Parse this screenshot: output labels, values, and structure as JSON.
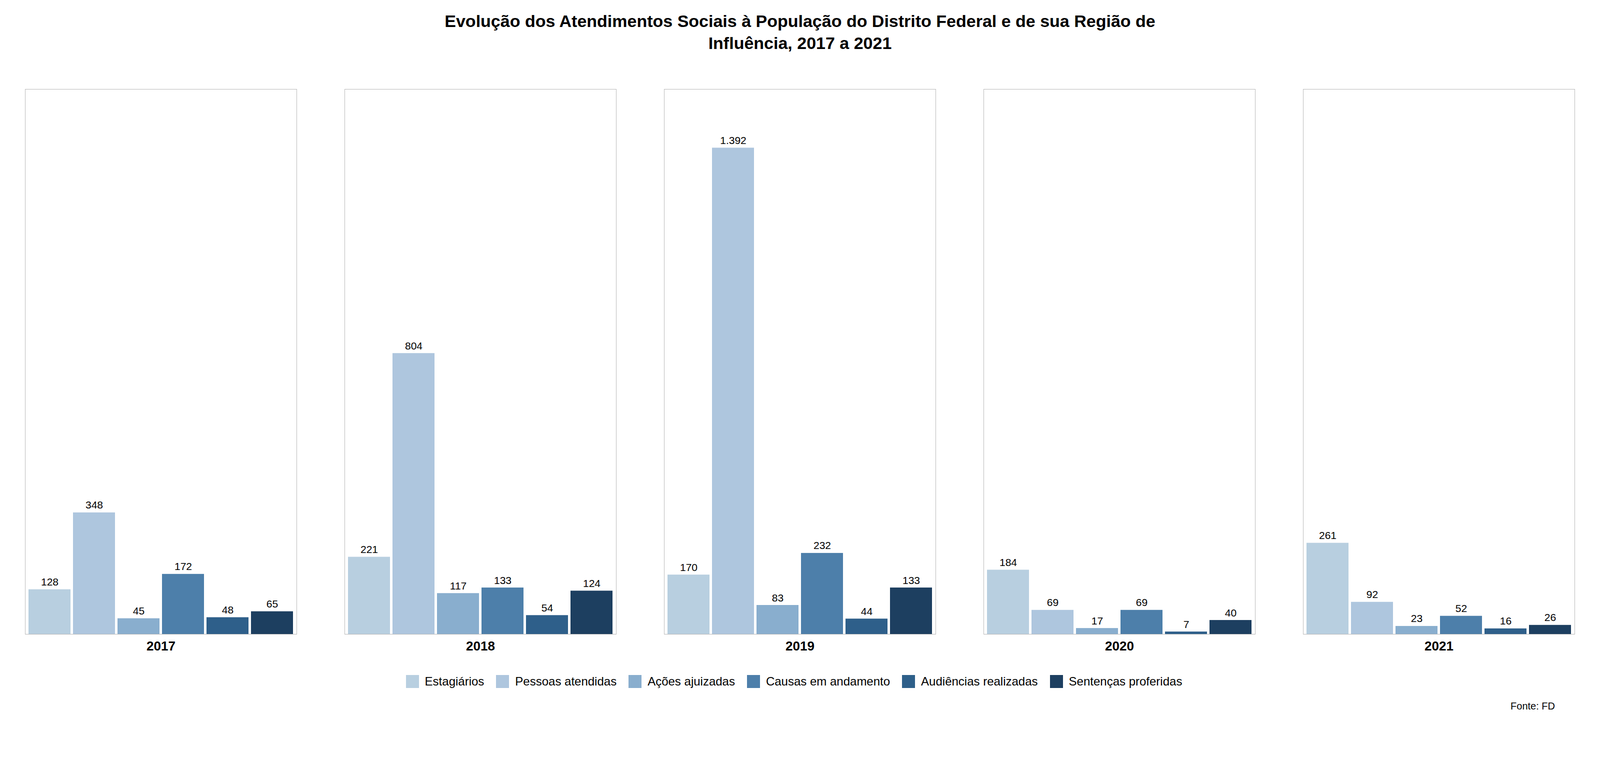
{
  "chart_data": {
    "type": "bar",
    "title": "Evolução dos Atendimentos Sociais à População do Distrito Federal e de sua Região de\nInfluência, 2017 a 2021",
    "categories": [
      "2017",
      "2018",
      "2019",
      "2020",
      "2021"
    ],
    "series": [
      {
        "name": "Estagiários",
        "color": "#b8cfe0",
        "values": [
          128,
          221,
          170,
          184,
          261
        ],
        "value_labels": [
          "128",
          "221",
          "170",
          "184",
          "261"
        ]
      },
      {
        "name": "Pessoas atendidas",
        "color": "#aec6de",
        "values": [
          348,
          804,
          1392,
          69,
          92
        ],
        "value_labels": [
          "348",
          "804",
          "1.392",
          "69",
          "92"
        ]
      },
      {
        "name": "Ações ajuizadas",
        "color": "#89aece",
        "values": [
          45,
          117,
          83,
          17,
          23
        ],
        "value_labels": [
          "45",
          "117",
          "83",
          "17",
          "23"
        ]
      },
      {
        "name": "Causas em andamento",
        "color": "#4d7faa",
        "values": [
          172,
          133,
          232,
          69,
          52
        ],
        "value_labels": [
          "172",
          "133",
          "232",
          "69",
          "52"
        ]
      },
      {
        "name": "Audiências realizadas",
        "color": "#2e5f8a",
        "values": [
          48,
          54,
          44,
          7,
          16
        ],
        "value_labels": [
          "48",
          "54",
          "44",
          "7",
          "16"
        ]
      },
      {
        "name": "Sentenças proferidas",
        "color": "#1d3f60",
        "values": [
          65,
          124,
          133,
          40,
          26
        ],
        "value_labels": [
          "65",
          "124",
          "133",
          "40",
          "26"
        ]
      }
    ],
    "ylim": [
      0,
      1560
    ],
    "tick_labels": "x",
    "data_labels": true,
    "grid": false,
    "legend": "bottom",
    "annotations": [
      "Fonte: FD"
    ]
  }
}
